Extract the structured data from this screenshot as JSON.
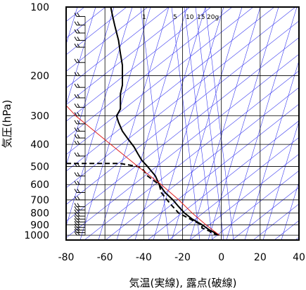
{
  "chart_data": {
    "type": "line",
    "chart_kind": "skew-T log-P thermodynamic diagram",
    "xlabel": "気温(実線), 露点(破線)",
    "ylabel": "気圧(hPa)",
    "x_axis": {
      "range": [
        -80,
        40
      ],
      "ticks": [
        -80,
        -60,
        -40,
        -20,
        0,
        20,
        40
      ]
    },
    "y_axis": {
      "scale": "log",
      "range": [
        100,
        1050
      ],
      "ticks": [
        100,
        200,
        300,
        400,
        500,
        600,
        700,
        800,
        900,
        1000
      ]
    },
    "mixing_ratio_labels": [
      "1",
      "5",
      "10",
      "15",
      "20g"
    ],
    "grid": true,
    "colors": {
      "temperature": "#000000",
      "dewpoint": "#000000",
      "parcel": "#e02020",
      "isotherms_adiabats": "#3a3af0",
      "grid": "#000000"
    },
    "series": [
      {
        "role": "temperature",
        "style": "solid",
        "points": [
          {
            "p": 1000,
            "t": -1
          },
          {
            "p": 950,
            "t": -6
          },
          {
            "p": 900,
            "t": -10
          },
          {
            "p": 850,
            "t": -15
          },
          {
            "p": 800,
            "t": -19
          },
          {
            "p": 750,
            "t": -22
          },
          {
            "p": 700,
            "t": -25
          },
          {
            "p": 650,
            "t": -29
          },
          {
            "p": 600,
            "t": -32
          },
          {
            "p": 550,
            "t": -34
          },
          {
            "p": 500,
            "t": -38
          },
          {
            "p": 470,
            "t": -41
          },
          {
            "p": 440,
            "t": -43
          },
          {
            "p": 410,
            "t": -45
          },
          {
            "p": 380,
            "t": -48
          },
          {
            "p": 350,
            "t": -51
          },
          {
            "p": 320,
            "t": -53
          },
          {
            "p": 300,
            "t": -54
          },
          {
            "p": 280,
            "t": -52
          },
          {
            "p": 260,
            "t": -52
          },
          {
            "p": 240,
            "t": -52
          },
          {
            "p": 220,
            "t": -51
          },
          {
            "p": 200,
            "t": -51
          },
          {
            "p": 180,
            "t": -51
          },
          {
            "p": 160,
            "t": -52
          },
          {
            "p": 140,
            "t": -53
          },
          {
            "p": 120,
            "t": -55
          },
          {
            "p": 110,
            "t": -56
          },
          {
            "p": 100,
            "t": -57
          }
        ]
      },
      {
        "role": "dewpoint",
        "style": "dashed",
        "points": [
          {
            "p": 1000,
            "t": -1.5
          },
          {
            "p": 980,
            "t": -5
          },
          {
            "p": 960,
            "t": -6
          },
          {
            "p": 930,
            "t": -10
          },
          {
            "p": 900,
            "t": -10
          },
          {
            "p": 870,
            "t": -14
          },
          {
            "p": 850,
            "t": -16
          },
          {
            "p": 800,
            "t": -22
          },
          {
            "p": 750,
            "t": -25
          },
          {
            "p": 700,
            "t": -28
          },
          {
            "p": 650,
            "t": -31
          },
          {
            "p": 600,
            "t": -32
          },
          {
            "p": 550,
            "t": -38
          },
          {
            "p": 520,
            "t": -40
          },
          {
            "p": 500,
            "t": -43
          },
          {
            "p": 485,
            "t": -52
          },
          {
            "p": 485,
            "t": -80
          }
        ]
      },
      {
        "role": "parcel",
        "style": "solid",
        "points": [
          {
            "p": 1000,
            "t": -1
          },
          {
            "p": 900,
            "t": -8
          },
          {
            "p": 800,
            "t": -15
          },
          {
            "p": 700,
            "t": -22
          },
          {
            "p": 600,
            "t": -31
          },
          {
            "p": 500,
            "t": -43
          },
          {
            "p": 400,
            "t": -57
          },
          {
            "p": 300,
            "t": -75
          },
          {
            "p": 270,
            "t": -80
          }
        ]
      }
    ],
    "wind_barbs_levels": [
      1000,
      975,
      950,
      925,
      900,
      875,
      850,
      825,
      800,
      775,
      750,
      700,
      650,
      600,
      550,
      500,
      450,
      400,
      375,
      350,
      325,
      300,
      275,
      250,
      225,
      200,
      175,
      150,
      140,
      130,
      120,
      110
    ]
  }
}
